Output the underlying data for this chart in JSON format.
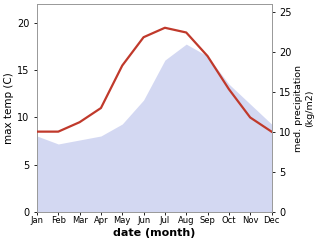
{
  "months": [
    "Jan",
    "Feb",
    "Mar",
    "Apr",
    "May",
    "Jun",
    "Jul",
    "Aug",
    "Sep",
    "Oct",
    "Nov",
    "Dec"
  ],
  "month_indices": [
    1,
    2,
    3,
    4,
    5,
    6,
    7,
    8,
    9,
    10,
    11,
    12
  ],
  "max_temp": [
    8.5,
    8.5,
    9.5,
    11.0,
    15.5,
    18.5,
    19.5,
    19.0,
    16.5,
    13.0,
    10.0,
    8.5
  ],
  "precipitation": [
    9.5,
    8.5,
    9.0,
    9.5,
    11.0,
    14.0,
    19.0,
    21.0,
    19.5,
    16.0,
    13.5,
    11.0
  ],
  "temp_color": "#c0392b",
  "precip_color": "#b0b8e8",
  "precip_fill_alpha": 0.55,
  "ylabel_left": "max temp (C)",
  "ylabel_right": "med. precipitation\n(kg/m2)",
  "xlabel": "date (month)",
  "ylim_left": [
    0,
    22
  ],
  "ylim_right": [
    0,
    26
  ],
  "yticks_left": [
    0,
    5,
    10,
    15,
    20
  ],
  "yticks_right": [
    0,
    5,
    10,
    15,
    20,
    25
  ],
  "background_color": "#ffffff",
  "spine_color": "#999999",
  "temp_linewidth": 1.6,
  "fig_width": 3.18,
  "fig_height": 2.42,
  "dpi": 100
}
